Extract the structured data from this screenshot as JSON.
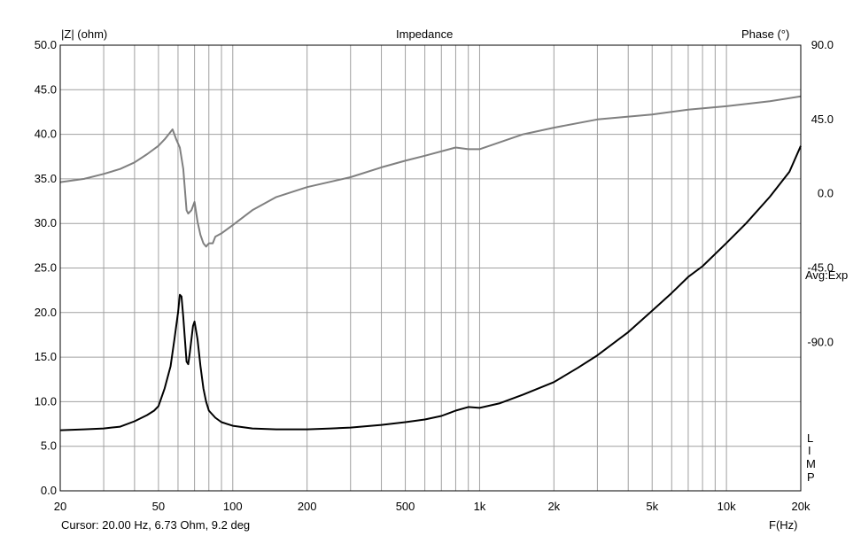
{
  "chart_data": {
    "type": "line",
    "title": "Impedance",
    "y_left_label": "|Z| (ohm)",
    "y_right_label": "Phase (°)",
    "xlabel": "F(Hz)",
    "x_scale": "log",
    "xlim": [
      20,
      20000
    ],
    "ylim_left": [
      0,
      50
    ],
    "ylim_right": [
      -180,
      90
    ],
    "grid": true,
    "x_ticks": [
      {
        "value": 20,
        "label": "20"
      },
      {
        "value": 50,
        "label": "50"
      },
      {
        "value": 100,
        "label": "100"
      },
      {
        "value": 200,
        "label": "200"
      },
      {
        "value": 500,
        "label": "500"
      },
      {
        "value": 1000,
        "label": "1k"
      },
      {
        "value": 2000,
        "label": "2k"
      },
      {
        "value": 5000,
        "label": "5k"
      },
      {
        "value": 10000,
        "label": "10k"
      },
      {
        "value": 20000,
        "label": "20k"
      }
    ],
    "y_left_ticks": [
      {
        "value": 0,
        "label": "0.0"
      },
      {
        "value": 5,
        "label": "5.0"
      },
      {
        "value": 10,
        "label": "10.0"
      },
      {
        "value": 15,
        "label": "15.0"
      },
      {
        "value": 20,
        "label": "20.0"
      },
      {
        "value": 25,
        "label": "25.0"
      },
      {
        "value": 30,
        "label": "30.0"
      },
      {
        "value": 35,
        "label": "35.0"
      },
      {
        "value": 40,
        "label": "40.0"
      },
      {
        "value": 45,
        "label": "45.0"
      },
      {
        "value": 50,
        "label": "50.0"
      }
    ],
    "y_right_ticks": [
      {
        "value": 90,
        "label": "90.0"
      },
      {
        "value": 45,
        "label": "45.0"
      },
      {
        "value": 0,
        "label": "0.0"
      },
      {
        "value": -45,
        "label": "-45.0"
      },
      {
        "value": -90,
        "label": "-90.0"
      }
    ],
    "series": [
      {
        "name": "Impedance",
        "axis": "left",
        "color": "#000000",
        "x": [
          20,
          25,
          30,
          35,
          40,
          45,
          48,
          50,
          53,
          56,
          58,
          60,
          61,
          62,
          63,
          65,
          66,
          67,
          69,
          70,
          72,
          74,
          76,
          78,
          80,
          85,
          90,
          100,
          120,
          150,
          200,
          250,
          300,
          400,
          500,
          600,
          700,
          800,
          900,
          1000,
          1200,
          1500,
          2000,
          2500,
          3000,
          4000,
          5000,
          6000,
          7000,
          8000,
          10000,
          12000,
          15000,
          18000,
          20000
        ],
        "y": [
          6.8,
          6.9,
          7.0,
          7.2,
          7.8,
          8.5,
          9.0,
          9.5,
          11.5,
          14.0,
          17.0,
          20.0,
          22.0,
          21.8,
          19.5,
          14.5,
          14.2,
          15.5,
          18.5,
          19.0,
          17.0,
          14.0,
          11.5,
          10.0,
          9.0,
          8.2,
          7.7,
          7.3,
          7.0,
          6.9,
          6.9,
          7.0,
          7.1,
          7.4,
          7.7,
          8.0,
          8.4,
          9.0,
          9.4,
          9.3,
          9.8,
          10.8,
          12.2,
          13.8,
          15.2,
          17.8,
          20.2,
          22.2,
          24.0,
          25.2,
          27.8,
          30.0,
          33.0,
          35.8,
          38.7
        ]
      },
      {
        "name": "Phase",
        "axis": "right",
        "color": "#808080",
        "x": [
          20,
          25,
          30,
          35,
          40,
          45,
          50,
          53,
          55,
          57,
          59,
          61,
          63,
          65,
          66,
          68,
          70,
          72,
          74,
          76,
          78,
          80,
          83,
          85,
          90,
          100,
          120,
          150,
          200,
          300,
          400,
          500,
          600,
          800,
          900,
          1000,
          1500,
          2000,
          3000,
          5000,
          7000,
          10000,
          15000,
          20000
        ],
        "y": [
          7.0,
          9.0,
          12.0,
          15.0,
          19.0,
          24.0,
          29.0,
          33.0,
          36.0,
          39.0,
          33.0,
          28.0,
          15.0,
          -10.0,
          -12.0,
          -10.0,
          -5.0,
          -17.0,
          -25.0,
          -30.0,
          -32.0,
          -30.0,
          -30.0,
          -26.0,
          -24.0,
          -19.0,
          -10.0,
          -2.0,
          4.0,
          10.0,
          16.0,
          20.0,
          23.0,
          28.0,
          27.0,
          27.0,
          36.0,
          40.0,
          45.0,
          48.0,
          51.0,
          53.0,
          56.0,
          59.0
        ]
      }
    ]
  },
  "cursor_text": "Cursor: 20.00 Hz, 6.73 Ohm, 9.2 deg",
  "avg_text": "Avg:Exp",
  "limp_letters": [
    "L",
    "I",
    "M",
    "P"
  ],
  "colors": {
    "grid": "#a0a0a0",
    "axes": "#000000",
    "background": "#ffffff"
  }
}
